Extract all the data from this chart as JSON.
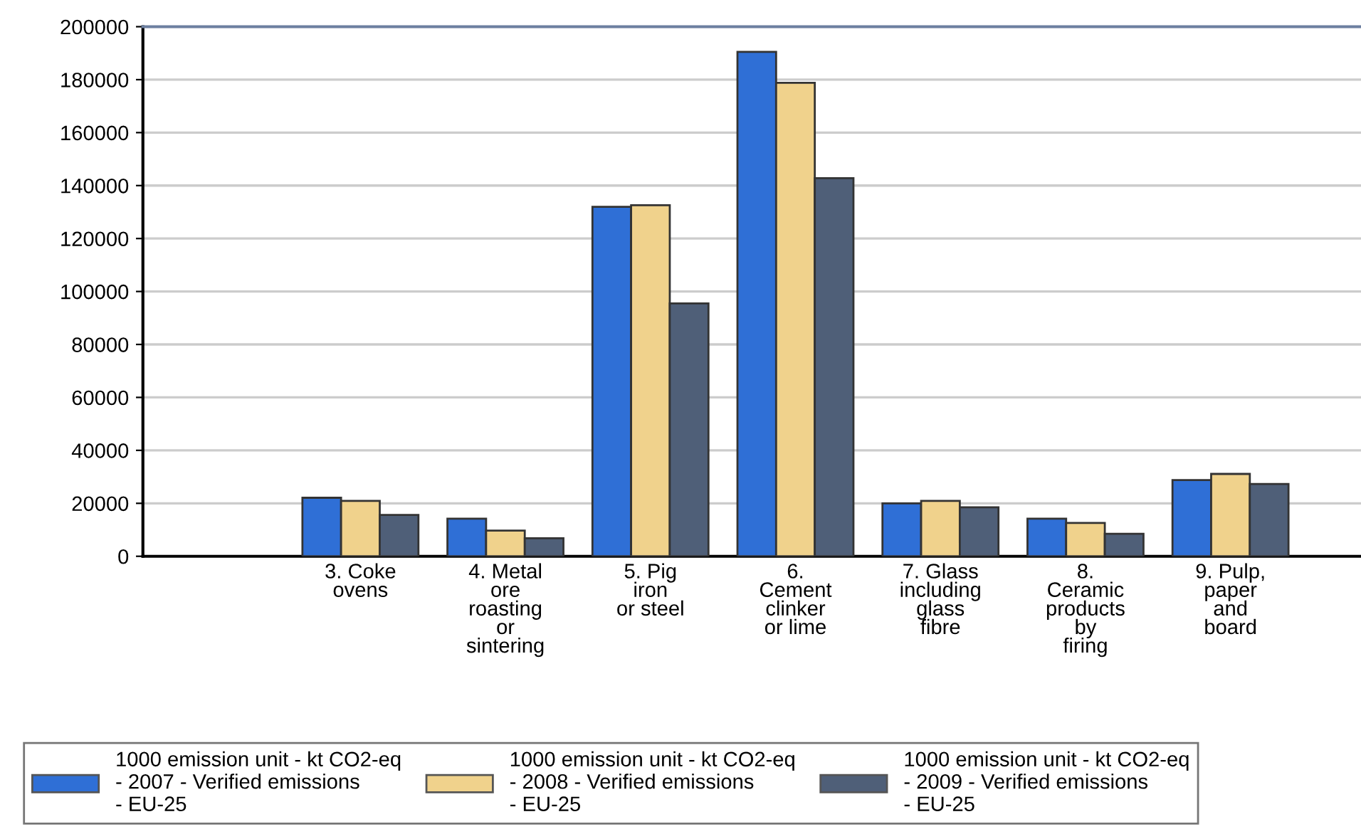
{
  "chart_data": {
    "type": "bar",
    "categories": [
      "3. Coke\novens",
      "4. Metal\nore\nroasting\nor\nsintering",
      "5. Pig\niron\nor steel",
      "6.\nCement\nclinker\nor lime",
      "7. Glass\nincluding\nglass\nfibre",
      "8.\nCeramic\nproducts\nby\nfiring",
      "9. Pulp,\npaper\nand\nboard"
    ],
    "series": [
      {
        "name": "1000 emission unit - kt CO2-eq\n- 2007 - Verified emissions\n- EU-25",
        "color": "#2f6fd6",
        "values": [
          22100,
          14200,
          132000,
          190500,
          20000,
          14200,
          28800
        ]
      },
      {
        "name": "1000 emission unit - kt CO2-eq\n- 2008 - Verified emissions\n- EU-25",
        "color": "#f0d28c",
        "values": [
          20900,
          9700,
          132600,
          178800,
          20900,
          12600,
          31100
        ]
      },
      {
        "name": "1000 emission unit - kt CO2-eq\n- 2009 - Verified emissions\n- EU-25",
        "color": "#4f5f78",
        "values": [
          15600,
          6800,
          95500,
          142800,
          18500,
          8500,
          27300
        ]
      }
    ],
    "ylim": [
      0,
      200000
    ],
    "yticks": [
      0,
      20000,
      40000,
      60000,
      80000,
      100000,
      120000,
      140000,
      160000,
      180000,
      200000
    ],
    "grid": "y",
    "legend": "bottom"
  }
}
